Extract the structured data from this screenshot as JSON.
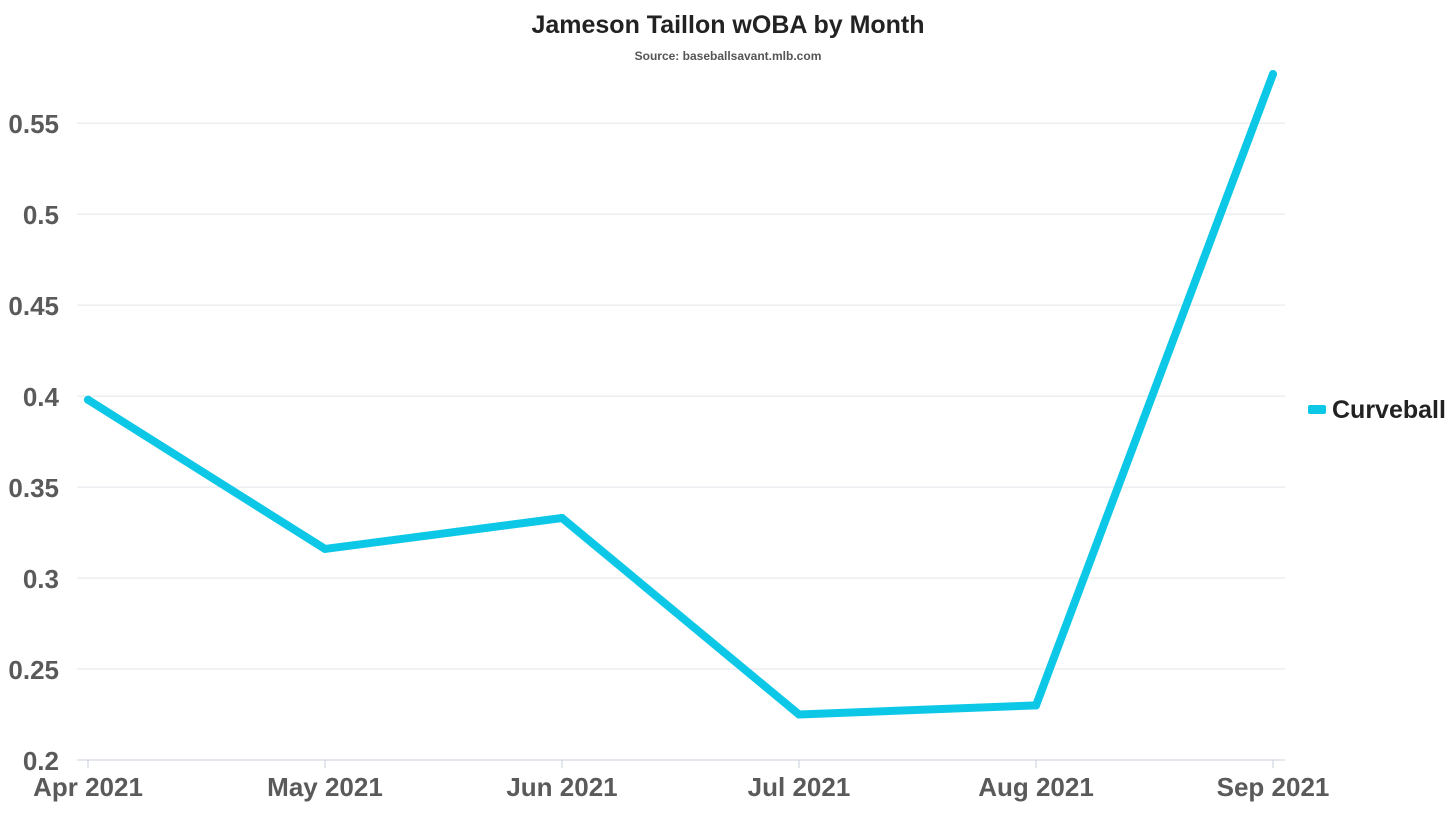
{
  "chart_data": {
    "type": "line",
    "title": "Jameson Taillon wOBA by Month",
    "subtitle": "Source: baseballsavant.mlb.com",
    "xlabel": "",
    "ylabel": "",
    "categories": [
      "Apr 2021",
      "May 2021",
      "Jun 2021",
      "Jul 2021",
      "Aug 2021",
      "Sep 2021"
    ],
    "series": [
      {
        "name": "Curveball",
        "color": "#0cc8e6",
        "values": [
          0.398,
          0.316,
          0.333,
          0.225,
          0.23,
          0.577
        ]
      }
    ],
    "ylim": [
      0.2,
      0.58
    ],
    "yticks": [
      0.2,
      0.25,
      0.3,
      0.35,
      0.4,
      0.45,
      0.5,
      0.55
    ],
    "ytick_labels": [
      "0.2",
      "0.25",
      "0.3",
      "0.35",
      "0.4",
      "0.45",
      "0.5",
      "0.55"
    ],
    "grid": true,
    "legend_position": "right"
  }
}
